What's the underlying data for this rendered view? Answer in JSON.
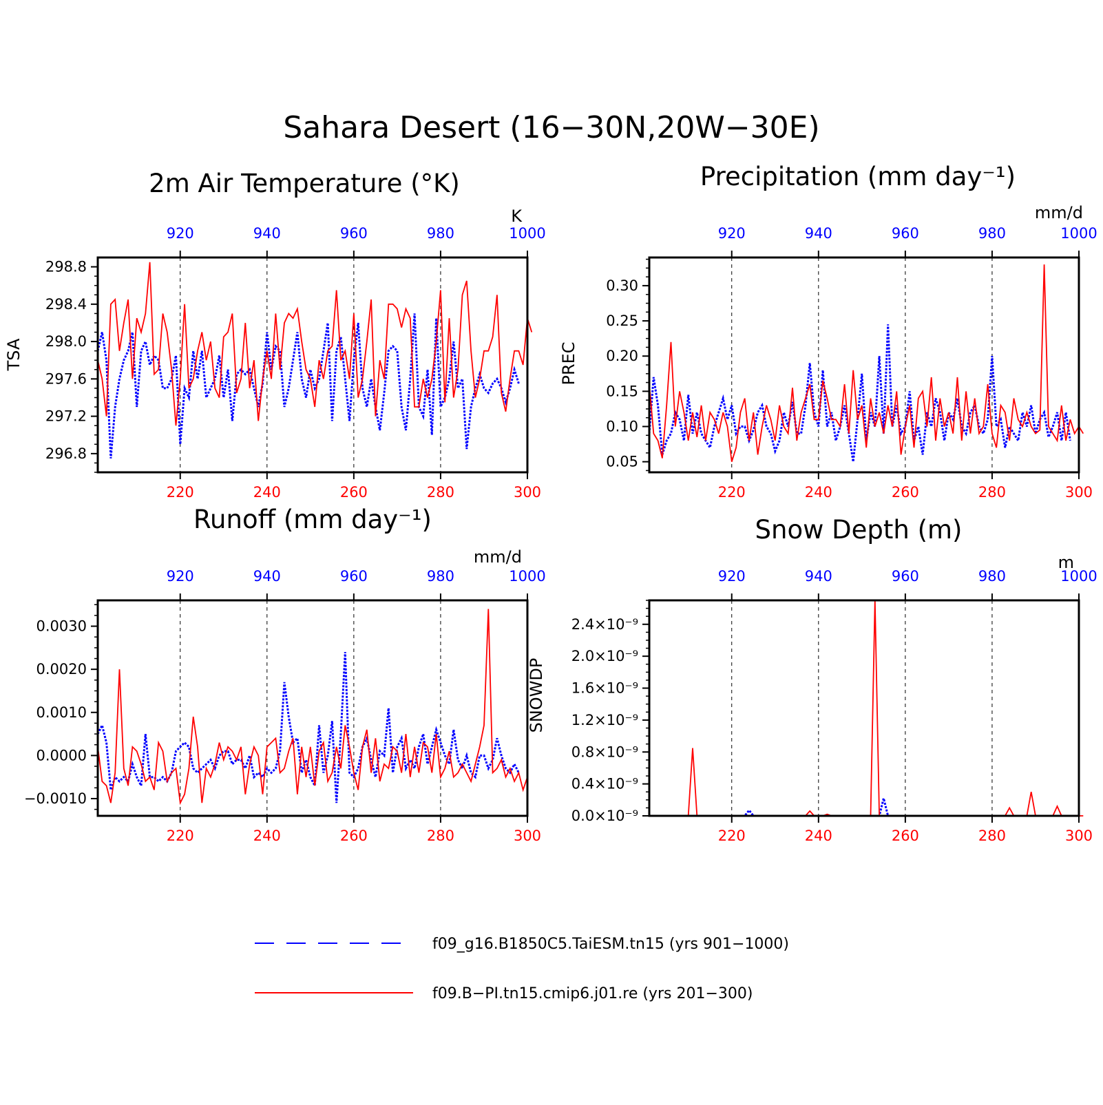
{
  "main_title": "Sahara Desert (16−30N,20W−30E)",
  "legend": [
    {
      "label": "f09_g16.B1850C5.TaiESM.tn15 (yrs 901−1000)",
      "color": "#0000ff",
      "style": "dashed"
    },
    {
      "label": "f09.B−PI.tn15.cmip6.j01.re (yrs 201−300)",
      "color": "#ff0000",
      "style": "solid"
    }
  ],
  "colors": {
    "red_series": "#ff0000",
    "blue_series": "#0000ff",
    "axis": "#000000"
  },
  "chart_data": [
    {
      "type": "line",
      "title": "2m Air Temperature (°K)",
      "ylabel": "TSA",
      "units": "K",
      "ylim": [
        296.6,
        298.9
      ],
      "yticks": [
        296.8,
        297.2,
        297.6,
        298.0,
        298.4,
        298.8
      ],
      "ytick_labels": [
        "296.8",
        "297.2",
        "297.6",
        "298.0",
        "298.4",
        "298.8"
      ],
      "bottom_xticks": [
        220,
        240,
        260,
        280,
        300
      ],
      "top_xticks": [
        920,
        940,
        960,
        980,
        1000
      ],
      "grid_x": [
        220,
        240,
        260,
        280
      ],
      "red_x_start": 201,
      "blue_x_start": 901,
      "series": [
        {
          "name": "f09.B−PI.tn15.cmip6.j01.re (yrs 201−300)",
          "axis": "bottom",
          "values": [
            297.8,
            297.6,
            297.2,
            298.4,
            298.45,
            297.9,
            298.2,
            298.45,
            297.6,
            298.25,
            298.1,
            298.3,
            298.85,
            297.65,
            297.7,
            298.3,
            298.1,
            297.7,
            297.1,
            297.6,
            298.4,
            297.5,
            297.6,
            297.9,
            298.1,
            297.8,
            298.0,
            297.5,
            297.4,
            298.05,
            298.1,
            298.3,
            297.45,
            297.6,
            298.2,
            297.5,
            297.8,
            297.15,
            297.6,
            297.9,
            297.6,
            298.3,
            297.7,
            298.2,
            298.3,
            298.25,
            298.35,
            298.0,
            297.7,
            297.6,
            297.3,
            297.8,
            297.6,
            297.9,
            297.95,
            298.55,
            297.8,
            297.9,
            297.6,
            298.3,
            297.4,
            297.6,
            298.0,
            298.45,
            297.2,
            297.8,
            297.6,
            298.4,
            298.4,
            298.35,
            298.15,
            298.35,
            298.25,
            297.3,
            297.3,
            297.6,
            297.4,
            297.6,
            298.0,
            298.55,
            297.35,
            298.25,
            297.4,
            297.7,
            298.5,
            298.65,
            297.9,
            297.4,
            297.6,
            297.9,
            297.9,
            298.05,
            298.5,
            297.45,
            297.25,
            297.6,
            297.9,
            297.9,
            297.75,
            298.25,
            298.1
          ]
        },
        {
          "name": "f09_g16.B1850C5.TaiESM.tn15 (yrs 901−1000)",
          "axis": "top",
          "values": [
            297.9,
            298.1,
            297.8,
            296.75,
            297.3,
            297.6,
            297.8,
            297.9,
            298.1,
            297.3,
            297.9,
            298.0,
            297.75,
            297.85,
            297.8,
            297.5,
            297.5,
            297.6,
            297.85,
            296.9,
            297.5,
            297.4,
            297.9,
            297.6,
            297.9,
            297.4,
            297.5,
            297.6,
            297.85,
            297.4,
            297.7,
            297.15,
            297.65,
            297.7,
            297.65,
            297.7,
            297.5,
            297.3,
            297.55,
            298.1,
            297.7,
            297.95,
            297.9,
            297.3,
            297.5,
            297.8,
            298.1,
            297.6,
            297.4,
            297.7,
            297.5,
            297.6,
            297.9,
            298.2,
            297.15,
            297.9,
            298.05,
            297.6,
            297.15,
            297.8,
            298.2,
            297.5,
            297.3,
            297.6,
            297.3,
            297.05,
            297.45,
            297.9,
            297.95,
            297.9,
            297.3,
            297.05,
            297.6,
            298.3,
            297.3,
            297.2,
            297.7,
            297.0,
            298.25,
            297.3,
            297.4,
            297.6,
            298.0,
            297.5,
            297.6,
            296.85,
            297.3,
            297.5,
            297.65,
            297.5,
            297.45,
            297.55,
            297.6,
            297.5,
            297.35,
            297.5,
            297.7,
            297.55
          ]
        }
      ]
    },
    {
      "type": "line",
      "title": "Precipitation (mm day⁻¹)",
      "ylabel": "PREC",
      "units": "mm/d",
      "ylim": [
        0.035,
        0.34
      ],
      "yticks": [
        0.05,
        0.1,
        0.15,
        0.2,
        0.25,
        0.3
      ],
      "ytick_labels": [
        "0.05",
        "0.10",
        "0.15",
        "0.20",
        "0.25",
        "0.30"
      ],
      "bottom_xticks": [
        220,
        240,
        260,
        280,
        300
      ],
      "top_xticks": [
        920,
        940,
        960,
        980,
        1000
      ],
      "grid_x": [
        220,
        240,
        260,
        280
      ],
      "red_x_start": 201,
      "blue_x_start": 901,
      "series": [
        {
          "name": "f09.B−PI.tn15.cmip6.j01.re (yrs 201−300)",
          "axis": "bottom",
          "values": [
            0.16,
            0.09,
            0.08,
            0.055,
            0.13,
            0.22,
            0.1,
            0.15,
            0.12,
            0.08,
            0.12,
            0.085,
            0.13,
            0.08,
            0.12,
            0.11,
            0.09,
            0.12,
            0.1,
            0.05,
            0.07,
            0.12,
            0.14,
            0.08,
            0.12,
            0.06,
            0.1,
            0.13,
            0.11,
            0.08,
            0.13,
            0.1,
            0.09,
            0.155,
            0.08,
            0.12,
            0.14,
            0.16,
            0.11,
            0.11,
            0.165,
            0.14,
            0.11,
            0.11,
            0.1,
            0.16,
            0.09,
            0.18,
            0.11,
            0.13,
            0.07,
            0.14,
            0.1,
            0.12,
            0.09,
            0.13,
            0.1,
            0.15,
            0.06,
            0.1,
            0.13,
            0.07,
            0.14,
            0.15,
            0.1,
            0.17,
            0.08,
            0.14,
            0.1,
            0.12,
            0.09,
            0.17,
            0.08,
            0.15,
            0.09,
            0.14,
            0.09,
            0.1,
            0.16,
            0.09,
            0.07,
            0.13,
            0.12,
            0.08,
            0.14,
            0.11,
            0.1,
            0.12,
            0.1,
            0.09,
            0.095,
            0.33,
            0.1,
            0.09,
            0.08,
            0.13,
            0.08,
            0.11,
            0.09,
            0.1,
            0.09
          ]
        },
        {
          "name": "f09_g16.B1850C5.TaiESM.tn15 (yrs 901−1000)",
          "axis": "top",
          "values": [
            0.09,
            0.17,
            0.13,
            0.06,
            0.08,
            0.09,
            0.12,
            0.11,
            0.08,
            0.145,
            0.09,
            0.12,
            0.09,
            0.08,
            0.07,
            0.1,
            0.12,
            0.14,
            0.11,
            0.13,
            0.09,
            0.1,
            0.1,
            0.08,
            0.095,
            0.12,
            0.13,
            0.1,
            0.09,
            0.065,
            0.08,
            0.12,
            0.1,
            0.135,
            0.09,
            0.09,
            0.13,
            0.19,
            0.12,
            0.1,
            0.18,
            0.1,
            0.12,
            0.08,
            0.1,
            0.13,
            0.09,
            0.05,
            0.11,
            0.175,
            0.08,
            0.12,
            0.1,
            0.2,
            0.09,
            0.245,
            0.1,
            0.13,
            0.09,
            0.1,
            0.15,
            0.08,
            0.1,
            0.06,
            0.12,
            0.1,
            0.14,
            0.12,
            0.08,
            0.12,
            0.11,
            0.14,
            0.1,
            0.09,
            0.12,
            0.13,
            0.1,
            0.09,
            0.11,
            0.2,
            0.1,
            0.11,
            0.07,
            0.1,
            0.09,
            0.08,
            0.12,
            0.1,
            0.13,
            0.09,
            0.11,
            0.12,
            0.085,
            0.1,
            0.12,
            0.08,
            0.12,
            0.08
          ]
        }
      ]
    },
    {
      "type": "line",
      "title": "Runoff (mm day⁻¹)",
      "ylabel": "",
      "units": "mm/d",
      "ylim": [
        -0.0014,
        0.0036
      ],
      "yticks": [
        -0.001,
        0.0,
        0.001,
        0.002,
        0.003
      ],
      "ytick_labels": [
        "−0.0010",
        "0.0000",
        "0.0010",
        "0.0020",
        "0.0030"
      ],
      "bottom_xticks": [
        220,
        240,
        260,
        280,
        300
      ],
      "top_xticks": [
        920,
        940,
        960,
        980,
        1000
      ],
      "grid_x": [
        220,
        240,
        260,
        280
      ],
      "red_x_start": 201,
      "blue_x_start": 901,
      "series": [
        {
          "name": "f09.B−PI.tn15.cmip6.j01.re (yrs 201−300)",
          "axis": "bottom",
          "values": [
            0.0002,
            -0.0006,
            -0.0007,
            -0.0011,
            -0.0004,
            0.002,
            -0.0003,
            -0.0007,
            0.0002,
            0.0001,
            -0.0002,
            -0.0006,
            -0.0005,
            -0.0008,
            0.0003,
            0.0001,
            -0.0006,
            -0.0004,
            -0.0003,
            -0.0011,
            -0.0009,
            -0.0003,
            0.0009,
            0.0002,
            -0.0011,
            -0.0003,
            -0.0005,
            -0.0002,
            0.0003,
            -0.0001,
            0.0002,
            0.0001,
            -0.0001,
            0.0002,
            -0.0009,
            -0.0002,
            0.0002,
            0.0,
            -0.0009,
            0.0002,
            0.0003,
            0.0004,
            -0.0004,
            -0.0003,
            0.0001,
            0.0004,
            -0.0009,
            0.0002,
            -0.0005,
            0.0002,
            -0.0007,
            0.0001,
            0.0003,
            -0.0006,
            -0.0004,
            0.0002,
            -0.0003,
            0.0007,
            0.0002,
            -0.0004,
            -0.0008,
            0.0002,
            0.0006,
            -0.0004,
            0.0004,
            -0.0006,
            -0.0002,
            -0.0003,
            0.0002,
            0.0001,
            -0.0004,
            0.0005,
            -0.0005,
            0.0002,
            -0.0004,
            0.0003,
            0.0002,
            -0.0004,
            0.0005,
            -0.0005,
            -0.0003,
            0.0001,
            -0.0005,
            -0.0004,
            -0.0002,
            -0.0004,
            -0.0006,
            -0.0002,
            0.0002,
            0.0007,
            0.0034,
            -0.0004,
            -0.0003,
            -0.0001,
            -0.0005,
            -0.0003,
            -0.0006,
            -0.0004,
            -0.0008,
            -0.0005
          ]
        },
        {
          "name": "f09_g16.B1850C5.TaiESM.tn15 (yrs 901−1000)",
          "axis": "top",
          "values": [
            0.0005,
            0.0007,
            0.0003,
            -0.0008,
            -0.0005,
            -0.0006,
            -0.0005,
            -0.0006,
            -0.0002,
            -0.0005,
            -0.0007,
            0.0005,
            -0.0005,
            -0.0005,
            -0.0006,
            -0.0005,
            -0.0006,
            -0.0004,
            0.0001,
            0.0002,
            0.0003,
            0.0002,
            -0.0003,
            -0.0004,
            -0.0003,
            -0.0002,
            -0.0001,
            -0.0003,
            0.0,
            0.0001,
            0.0001,
            -0.0002,
            -0.0001,
            -0.0001,
            -0.0003,
            0.0,
            -0.0005,
            -0.0004,
            -0.0005,
            -0.0003,
            -0.0004,
            -0.0003,
            0.0001,
            0.0017,
            0.0009,
            0.0003,
            0.0004,
            -0.0004,
            -0.0001,
            -0.0005,
            -0.0007,
            0.0007,
            -0.0004,
            0.0,
            0.0008,
            -0.0011,
            0.0005,
            0.0024,
            -0.0004,
            -0.0005,
            -0.0003,
            0.0002,
            0.0004,
            -0.0001,
            -0.0005,
            0.0001,
            0.0,
            0.0011,
            -0.0004,
            0.0002,
            0.0004,
            -0.0003,
            -0.0001,
            -0.0003,
            0.0002,
            0.0005,
            -0.0002,
            0.0002,
            0.0006,
            0.0003,
            0.0,
            -0.0002,
            0.0006,
            -0.0001,
            -0.0003,
            0.0,
            -0.0004,
            -0.0005,
            0.0,
            0.0,
            -0.0003,
            -0.0001,
            0.0004,
            0.0,
            -0.0003,
            -0.0004,
            -0.0002,
            -0.0004
          ]
        }
      ]
    },
    {
      "type": "line",
      "title": "Snow Depth (m)",
      "ylabel": "SNOWDP",
      "units": "m",
      "ylim": [
        0.0,
        2.7e-09
      ],
      "yticks": [
        0.0,
        4e-10,
        8e-10,
        1.2e-09,
        1.6e-09,
        2e-09,
        2.4e-09
      ],
      "ytick_labels": [
        "0.0×10⁻⁹",
        "0.4×10⁻⁹",
        "0.8×10⁻⁹",
        "1.2×10⁻⁹",
        "1.6×10⁻⁹",
        "2.0×10⁻⁹",
        "2.4×10⁻⁹"
      ],
      "bottom_xticks": [
        220,
        240,
        260,
        280,
        300
      ],
      "top_xticks": [
        920,
        940,
        960,
        980,
        1000
      ],
      "grid_x": [
        220,
        240,
        260,
        280
      ],
      "red_x_start": 201,
      "blue_x_start": 901,
      "series": [
        {
          "name": "f09.B−PI.tn15.cmip6.j01.re (yrs 201−300)",
          "axis": "bottom",
          "values": [
            0,
            0,
            0,
            0,
            0,
            0,
            0,
            0,
            0,
            0,
            8.5e-10,
            0,
            0,
            0,
            0,
            0,
            0,
            0,
            0,
            0,
            0,
            0,
            0,
            0,
            0,
            0,
            0,
            0,
            0,
            0,
            0,
            0,
            0,
            0,
            0,
            0,
            0,
            6e-11,
            0,
            0,
            0,
            2e-11,
            0,
            0,
            0,
            0,
            0,
            0,
            0,
            0,
            0,
            0,
            2.7e-09,
            0,
            0,
            0,
            0,
            0,
            0,
            0,
            0,
            0,
            0,
            0,
            0,
            0,
            0,
            0,
            0,
            0,
            0,
            0,
            0,
            0,
            0,
            0,
            0,
            0,
            0,
            0,
            0,
            0,
            0,
            1e-10,
            0,
            0,
            0,
            0,
            3e-10,
            0,
            0,
            0,
            0,
            0,
            1.2e-10,
            0,
            0,
            0,
            0,
            0,
            0
          ]
        },
        {
          "name": "f09_g16.B1850C5.TaiESM.tn15 (yrs 901−1000)",
          "axis": "top",
          "values": [
            0,
            0,
            0,
            0,
            0,
            0,
            0,
            0,
            0,
            0,
            0,
            0,
            0,
            0,
            0,
            0,
            0,
            0,
            0,
            0,
            0,
            0,
            0,
            7e-11,
            0,
            0,
            0,
            0,
            0,
            0,
            0,
            0,
            0,
            0,
            0,
            0,
            0,
            0,
            0,
            0,
            0,
            0,
            0,
            0,
            0,
            0,
            0,
            0,
            0,
            0,
            0,
            0,
            0,
            0,
            2.2e-10,
            0,
            0,
            0,
            0,
            0,
            0,
            0,
            0,
            0,
            0,
            0,
            0,
            0,
            0,
            0,
            0,
            0,
            0,
            0,
            0,
            0,
            0,
            0,
            0,
            0,
            0,
            0,
            0,
            0,
            0,
            0,
            0,
            0,
            0,
            0,
            0,
            0,
            0,
            0,
            0,
            0,
            0,
            0,
            0,
            0
          ]
        }
      ]
    }
  ]
}
